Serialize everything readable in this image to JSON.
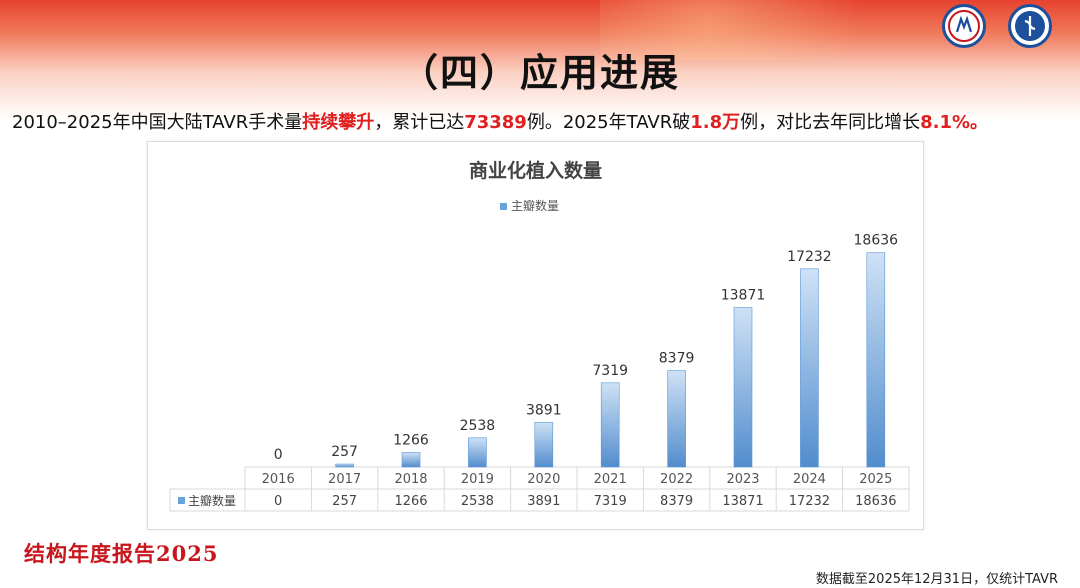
{
  "header": {
    "title": "（四）应用进展",
    "subtitle_parts": [
      {
        "text": "2010–2025年中国大陆TAVR手术量",
        "hl": false
      },
      {
        "text": "持续攀升",
        "hl": true
      },
      {
        "text": "，累计已达",
        "hl": false
      },
      {
        "text": "73389",
        "hl": true
      },
      {
        "text": "例。2025年TAVR破",
        "hl": false
      },
      {
        "text": "1.8万",
        "hl": true
      },
      {
        "text": "例，对比去年同比增长",
        "hl": false
      },
      {
        "text": "8.1%",
        "hl": true
      },
      {
        "text": "。",
        "hl": true
      }
    ]
  },
  "chart_data": {
    "type": "bar",
    "title": "商业化植入数量",
    "categories": [
      "2016",
      "2017",
      "2018",
      "2019",
      "2020",
      "2021",
      "2022",
      "2023",
      "2024",
      "2025"
    ],
    "series": [
      {
        "name": "主瓣数量",
        "values": [
          0,
          257,
          1266,
          2538,
          3891,
          7319,
          8379,
          13871,
          17232,
          18636
        ]
      }
    ],
    "legend_position": "top",
    "ylim": [
      0,
      20000
    ],
    "grid": false,
    "data_table": true,
    "bar_color": "#6aa2da"
  },
  "footer": {
    "brand": "结构年度报告2025",
    "note": "数据截至2025年12月31日，仅统计TAVR"
  }
}
